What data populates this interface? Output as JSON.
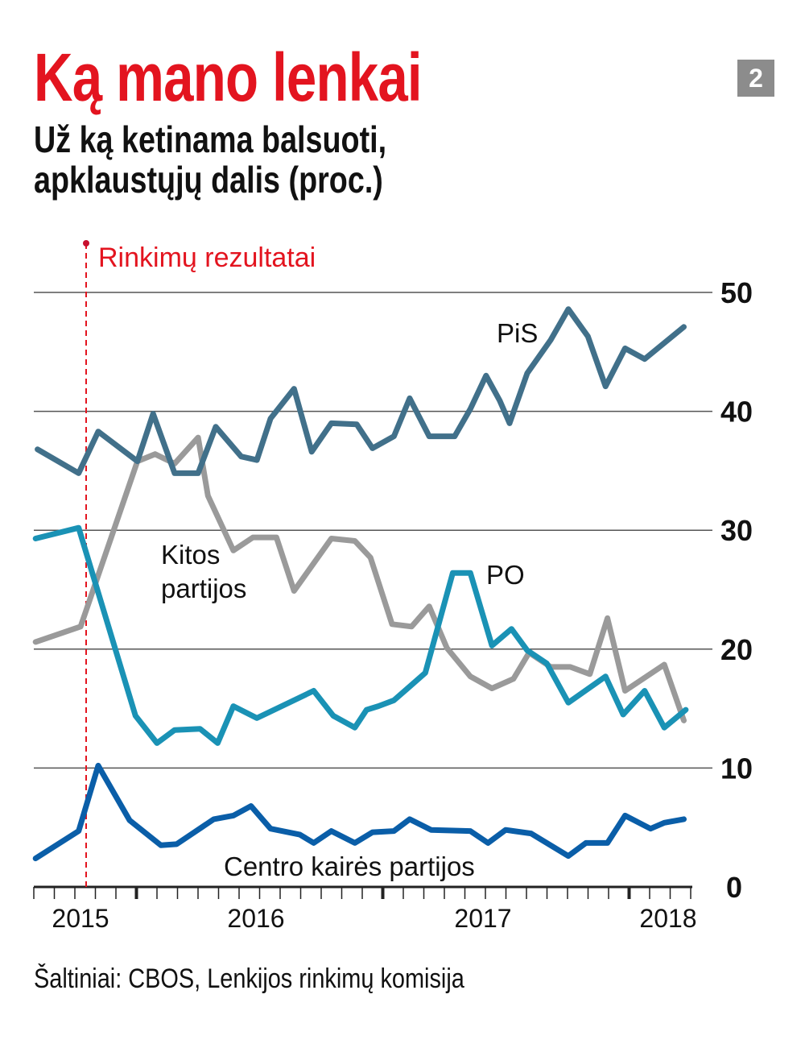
{
  "header": {
    "title": "Ką mano lenkai",
    "subtitle_line1": "Už ką ketinama balsuoti,",
    "subtitle_line2": "apklaustųjų dalis (proc.)",
    "badge": "2"
  },
  "source": "Šaltiniai: CBOS, Lenkijos rinkimų komisija",
  "colors": {
    "title": "#e3141f",
    "pis": "#41708a",
    "kitos": "#9a9a9a",
    "po": "#1a92b5",
    "centro": "#0a5ea8",
    "marker": "#e3141f"
  },
  "chart_data": {
    "type": "line",
    "title": "Už ką ketinama balsuoti, apklaustųjų dalis (proc.)",
    "xlabel": "",
    "ylabel": "proc.",
    "ylim": [
      0,
      50
    ],
    "xlim": [
      2014.74,
      2018.1
    ],
    "yticks": [
      "0",
      "10",
      "20",
      "30",
      "40",
      "50"
    ],
    "xticks": [
      "2015",
      "2016",
      "2017",
      "2018"
    ],
    "grid": true,
    "annotation": {
      "label": "Rinkimų rezultatai",
      "x": 2015.01
    },
    "series": [
      {
        "name": "PiS",
        "color": "#41708a",
        "x": [
          2014.76,
          2014.97,
          2015.07,
          2015.27,
          2015.35,
          2015.46,
          2015.58,
          2015.67,
          2015.8,
          2015.88,
          2015.95,
          2016.07,
          2016.16,
          2016.26,
          2016.39,
          2016.47,
          2016.58,
          2016.66,
          2016.76,
          2016.89,
          2016.97,
          2017.05,
          2017.12,
          2017.17,
          2017.26,
          2017.38,
          2017.47,
          2017.57,
          2017.66,
          2017.76,
          2017.86,
          2018.06
        ],
        "y": [
          36.8,
          34.8,
          38.3,
          35.8,
          39.8,
          34.8,
          34.8,
          38.7,
          36.2,
          35.9,
          39.4,
          41.9,
          36.6,
          39.0,
          38.9,
          36.9,
          37.9,
          41.1,
          37.9,
          37.9,
          40.2,
          43.0,
          40.9,
          39.0,
          43.2,
          46.0,
          48.6,
          46.3,
          42.1,
          45.3,
          44.4,
          47.1
        ]
      },
      {
        "name": "Kitos partijos",
        "color": "#9a9a9a",
        "x": [
          2014.75,
          2014.98,
          2015.27,
          2015.36,
          2015.46,
          2015.58,
          2015.63,
          2015.76,
          2015.86,
          2015.98,
          2016.07,
          2016.26,
          2016.38,
          2016.46,
          2016.57,
          2016.67,
          2016.76,
          2016.85,
          2016.97,
          2017.08,
          2017.19,
          2017.27,
          2017.38,
          2017.48,
          2017.58,
          2017.67,
          2017.76,
          2017.96,
          2018.06
        ],
        "y": [
          20.6,
          21.9,
          35.8,
          36.4,
          35.6,
          37.8,
          32.9,
          28.3,
          29.4,
          29.4,
          24.9,
          29.3,
          29.1,
          27.7,
          22.1,
          21.9,
          23.6,
          20.1,
          17.7,
          16.7,
          17.5,
          19.7,
          18.5,
          18.5,
          17.9,
          22.6,
          16.5,
          18.7,
          14.0
        ]
      },
      {
        "name": "PO",
        "color": "#1a92b5",
        "x": [
          2014.75,
          2014.97,
          2015.26,
          2015.37,
          2015.46,
          2015.59,
          2015.68,
          2015.76,
          2015.88,
          2016.17,
          2016.27,
          2016.38,
          2016.44,
          2016.5,
          2016.58,
          2016.74,
          2016.88,
          2016.97,
          2017.08,
          2017.18,
          2017.26,
          2017.36,
          2017.47,
          2017.66,
          2017.75,
          2017.86,
          2017.96,
          2018.07
        ],
        "y": [
          29.3,
          30.2,
          14.4,
          12.1,
          13.2,
          13.3,
          12.1,
          15.2,
          14.2,
          16.5,
          14.4,
          13.4,
          14.9,
          15.2,
          15.7,
          18.0,
          26.4,
          26.4,
          20.3,
          21.7,
          19.9,
          18.8,
          15.5,
          17.7,
          14.5,
          16.5,
          13.4,
          14.9
        ]
      },
      {
        "name": "Centro kairės partijos",
        "color": "#0a5ea8",
        "x": [
          2014.75,
          2014.97,
          2015.07,
          2015.23,
          2015.39,
          2015.47,
          2015.66,
          2015.76,
          2015.85,
          2015.95,
          2016.1,
          2016.17,
          2016.26,
          2016.38,
          2016.47,
          2016.58,
          2016.66,
          2016.77,
          2016.97,
          2017.06,
          2017.15,
          2017.28,
          2017.47,
          2017.56,
          2017.67,
          2017.76,
          2017.89,
          2017.96,
          2018.06
        ],
        "y": [
          2.4,
          4.7,
          10.2,
          5.6,
          3.5,
          3.6,
          5.7,
          6.0,
          6.8,
          4.9,
          4.4,
          3.7,
          4.7,
          3.7,
          4.6,
          4.7,
          5.7,
          4.8,
          4.7,
          3.7,
          4.8,
          4.5,
          2.6,
          3.7,
          3.7,
          6.0,
          4.9,
          5.4,
          5.7
        ]
      }
    ]
  }
}
